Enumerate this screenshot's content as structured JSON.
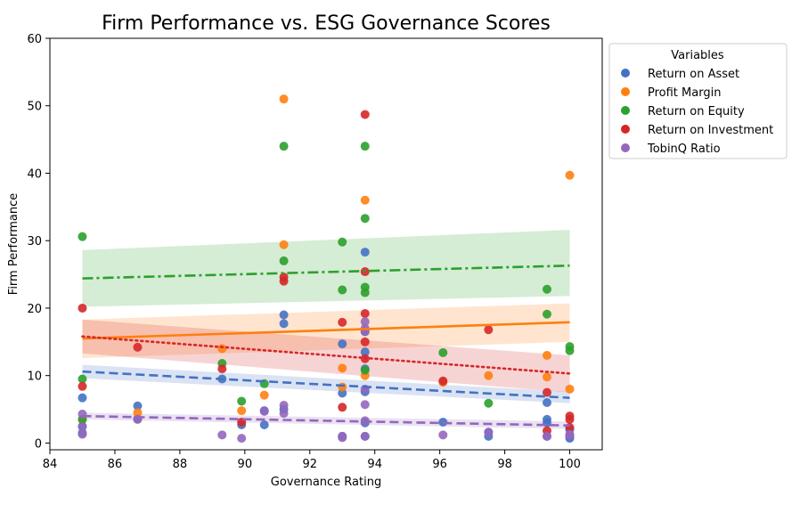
{
  "chart_data": {
    "type": "scatter",
    "title": "Firm Performance vs. ESG Governance Scores",
    "xlabel": "Governance Rating",
    "ylabel": "Firm Performance",
    "xlim": [
      84,
      101
    ],
    "ylim": [
      -1,
      60
    ],
    "xticks": [
      84,
      86,
      88,
      90,
      92,
      94,
      96,
      98,
      100
    ],
    "yticks": [
      0,
      10,
      20,
      30,
      40,
      50,
      60
    ],
    "grid": false,
    "legend": {
      "title": "Variables",
      "placement": "outside-top-right"
    },
    "series": [
      {
        "name": "Return on Asset",
        "color": "#4472c4",
        "line_style": "dashed",
        "fit": {
          "start": [
            85,
            10.6
          ],
          "end": [
            100,
            6.7
          ]
        },
        "band": {
          "lower": [
            9.6,
            5.9
          ],
          "upper": [
            11.6,
            7.6
          ]
        },
        "points": [
          [
            85,
            6.7
          ],
          [
            85,
            2.5
          ],
          [
            85,
            1.5
          ],
          [
            86.7,
            5.5
          ],
          [
            86.7,
            3.6
          ],
          [
            89.3,
            9.5
          ],
          [
            89.9,
            2.7
          ],
          [
            90.6,
            2.7
          ],
          [
            90.6,
            4.8
          ],
          [
            91.2,
            19
          ],
          [
            91.2,
            17.7
          ],
          [
            91.2,
            5
          ],
          [
            93,
            7.4
          ],
          [
            93,
            14.7
          ],
          [
            93,
            1
          ],
          [
            93.7,
            28.3
          ],
          [
            93.7,
            16.5
          ],
          [
            93.7,
            13.5
          ],
          [
            93.7,
            11
          ],
          [
            93.7,
            7.6
          ],
          [
            93.7,
            3
          ],
          [
            93.7,
            1
          ],
          [
            96.1,
            3.1
          ],
          [
            97.5,
            1.6
          ],
          [
            97.5,
            1
          ],
          [
            99.3,
            6
          ],
          [
            99.3,
            3.5
          ],
          [
            99.3,
            3
          ],
          [
            99.3,
            1
          ],
          [
            100,
            1
          ],
          [
            100,
            0.7
          ],
          [
            100,
            2
          ]
        ]
      },
      {
        "name": "Profit Margin",
        "color": "#ff7f0e",
        "line_style": "solid",
        "fit": {
          "start": [
            85,
            15.5
          ],
          "end": [
            100,
            17.9
          ]
        },
        "band": {
          "lower": [
            12.6,
            15
          ],
          "upper": [
            18.3,
            20.7
          ]
        },
        "points": [
          [
            85,
            3.5
          ],
          [
            86.7,
            4.5
          ],
          [
            89.3,
            14
          ],
          [
            89.9,
            4.8
          ],
          [
            90.6,
            7.1
          ],
          [
            91.2,
            29.4
          ],
          [
            91.2,
            51
          ],
          [
            93,
            11.1
          ],
          [
            93,
            8.3
          ],
          [
            93.7,
            36
          ],
          [
            93.7,
            10
          ],
          [
            96.1,
            9
          ],
          [
            97.5,
            10
          ],
          [
            99.3,
            13
          ],
          [
            99.3,
            9.8
          ],
          [
            100,
            39.7
          ],
          [
            100,
            8
          ]
        ]
      },
      {
        "name": "Return on Equity",
        "color": "#2ca02c",
        "line_style": "dashdot",
        "fit": {
          "start": [
            85,
            24.4
          ],
          "end": [
            100,
            26.3
          ]
        },
        "band": {
          "lower": [
            20.2,
            21.8
          ],
          "upper": [
            28.6,
            31.6
          ]
        },
        "points": [
          [
            85,
            30.6
          ],
          [
            85,
            9.5
          ],
          [
            85,
            3.5
          ],
          [
            89.3,
            11.8
          ],
          [
            89.9,
            6.2
          ],
          [
            90.6,
            8.8
          ],
          [
            91.2,
            44
          ],
          [
            91.2,
            27
          ],
          [
            93,
            29.8
          ],
          [
            93,
            22.7
          ],
          [
            93.7,
            44
          ],
          [
            93.7,
            33.3
          ],
          [
            93.7,
            23.1
          ],
          [
            93.7,
            22.3
          ],
          [
            93.7,
            10.8
          ],
          [
            96.1,
            13.4
          ],
          [
            97.5,
            5.9
          ],
          [
            99.3,
            22.8
          ],
          [
            99.3,
            19.1
          ],
          [
            100,
            14.3
          ],
          [
            100,
            13.7
          ]
        ]
      },
      {
        "name": "Return on Investment",
        "color": "#d62728",
        "line_style": "dotted",
        "fit": {
          "start": [
            85,
            15.8
          ],
          "end": [
            100,
            10.3
          ]
        },
        "band": {
          "lower": [
            13.3,
            7.5
          ],
          "upper": [
            18.3,
            13
          ]
        },
        "points": [
          [
            85,
            20
          ],
          [
            85,
            8.4
          ],
          [
            86.7,
            14.2
          ],
          [
            89.3,
            11
          ],
          [
            89.9,
            3.1
          ],
          [
            91.2,
            24
          ],
          [
            91.2,
            24.6
          ],
          [
            93,
            17.9
          ],
          [
            93,
            5.3
          ],
          [
            93.7,
            48.7
          ],
          [
            93.7,
            25.4
          ],
          [
            93.7,
            19.2
          ],
          [
            93.7,
            15
          ],
          [
            93.7,
            12.5
          ],
          [
            96.1,
            9.2
          ],
          [
            97.5,
            16.8
          ],
          [
            99.3,
            7.5
          ],
          [
            99.3,
            1.8
          ],
          [
            100,
            4
          ],
          [
            100,
            3.5
          ],
          [
            100,
            2.3
          ]
        ]
      },
      {
        "name": "TobinQ Ratio",
        "color": "#9467bd",
        "line_style": "dashed",
        "fit": {
          "start": [
            85,
            4
          ],
          "end": [
            100,
            2.6
          ]
        },
        "band": {
          "lower": [
            3.5,
            2.1
          ],
          "upper": [
            4.5,
            3.2
          ]
        },
        "points": [
          [
            85,
            4.3
          ],
          [
            85,
            2.4
          ],
          [
            85,
            1.3
          ],
          [
            86.7,
            3.5
          ],
          [
            89.3,
            1.2
          ],
          [
            89.9,
            0.7
          ],
          [
            90.6,
            4.7
          ],
          [
            91.2,
            5.6
          ],
          [
            91.2,
            4.4
          ],
          [
            93,
            1
          ],
          [
            93,
            0.8
          ],
          [
            93.7,
            18
          ],
          [
            93.7,
            17
          ],
          [
            93.7,
            16.6
          ],
          [
            93.7,
            8
          ],
          [
            93.7,
            5.7
          ],
          [
            93.7,
            3.3
          ],
          [
            93.7,
            1
          ],
          [
            96.1,
            1.2
          ],
          [
            97.5,
            1.6
          ],
          [
            99.3,
            1
          ],
          [
            100,
            1.1
          ],
          [
            100,
            1.3
          ]
        ]
      }
    ]
  }
}
